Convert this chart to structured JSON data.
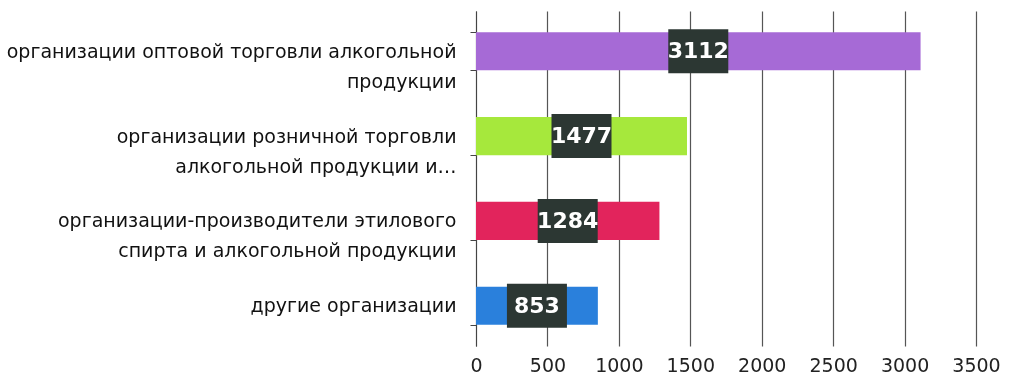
{
  "chart_data": {
    "type": "bar",
    "orientation": "horizontal",
    "categories": [
      "организации оптовой торговли алкогольной продукции",
      "организации розничной торговли алкогольной продукции и…",
      "организации-производители этилового спирта и алкогольной продукции",
      "другие организации"
    ],
    "values": [
      3112,
      1477,
      1284,
      853
    ],
    "colors": [
      "#a66ad6",
      "#a6e83c",
      "#e2245c",
      "#2a80dc"
    ],
    "xlim": [
      0,
      3500
    ],
    "xticks": [
      0,
      500,
      1000,
      1500,
      2000,
      2500,
      3000,
      3500
    ],
    "grid": "x",
    "data_labels": true
  }
}
